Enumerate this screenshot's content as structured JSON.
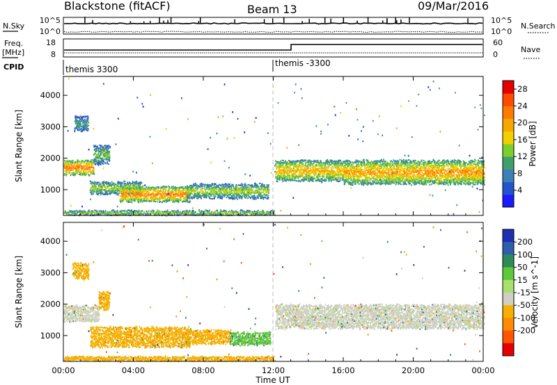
{
  "header": {
    "station": "Blackstone (fitACF)",
    "beam": "Beam 13",
    "date": "09/Mar/2016"
  },
  "noise_panel": {
    "left_label": "N.Sky",
    "right_label": "N.Search",
    "left_ticks": [
      "10^5",
      "10^0"
    ],
    "right_ticks": [
      "10^5",
      "10^0"
    ]
  },
  "freq_panel": {
    "left_label_top": "Freq.",
    "left_label_bottom": "[MHz]",
    "right_label": "Nave",
    "left_ticks": [
      "18",
      "8"
    ],
    "right_ticks": [
      "60",
      "0"
    ]
  },
  "cpid": {
    "label": "CPID",
    "segments": [
      "themis 3300",
      "themis -3300"
    ],
    "segment_start_hours": [
      0,
      12
    ]
  },
  "colors": {
    "power": [
      "#1a1aff",
      "#2255cc",
      "#3e7fb8",
      "#3f9f6a",
      "#7ccf2f",
      "#f2d000",
      "#f7a800",
      "#ff7a00",
      "#ff4a00",
      "#e60000"
    ],
    "velocity": [
      "#1e2fb0",
      "#2f5fa8",
      "#2e8b57",
      "#5cc83a",
      "#a8e070",
      "#cfcfc4",
      "#f5b000",
      "#ff8c00",
      "#ff5500",
      "#e60000"
    ],
    "gray_scatter": "#c8c8c0"
  },
  "chart_data": [
    {
      "type": "heatmap",
      "title": "Power",
      "xlabel": "",
      "ylabel": "Slant Range [km]",
      "x_ticks": [
        "00:00",
        "04:00",
        "08:00",
        "12:00",
        "16:00",
        "20:00",
        "00:00"
      ],
      "xlim_hours": [
        0,
        24
      ],
      "y_ticks": [
        1000,
        2000,
        3000,
        4000
      ],
      "ylim": [
        180,
        4600
      ],
      "colorbar_label": "Power [dB]",
      "colorbar_ticks": [
        4,
        8,
        12,
        16,
        20,
        24,
        28
      ],
      "colorbar_range": [
        0,
        30
      ],
      "dashed_line_hour": 12,
      "scatter_bands": [
        {
          "t_start": 0.0,
          "t_end": 1.7,
          "range_center": 1700,
          "range_half_width": 230,
          "value": 22
        },
        {
          "t_start": 1.7,
          "t_end": 2.6,
          "range_center": 2100,
          "range_half_width": 300,
          "value": 12
        },
        {
          "t_start": 0.6,
          "t_end": 1.4,
          "range_center": 3100,
          "range_half_width": 250,
          "value": 10
        },
        {
          "t_start": 1.5,
          "t_end": 4.5,
          "range_center": 1050,
          "range_half_width": 200,
          "value": 14
        },
        {
          "t_start": 3.2,
          "t_end": 7.2,
          "range_center": 850,
          "range_half_width": 240,
          "value": 21
        },
        {
          "t_start": 7.0,
          "t_end": 11.7,
          "range_center": 950,
          "range_half_width": 230,
          "value": 14
        },
        {
          "t_start": 0.0,
          "t_end": 12.0,
          "range_center": 260,
          "range_half_width": 70,
          "value": 14
        },
        {
          "t_start": 12.1,
          "t_end": 16.0,
          "range_center": 1600,
          "range_half_width": 330,
          "value": 18
        },
        {
          "t_start": 16.0,
          "t_end": 20.0,
          "range_center": 1550,
          "range_half_width": 380,
          "value": 19
        },
        {
          "t_start": 20.0,
          "t_end": 24.0,
          "range_center": 1550,
          "range_half_width": 380,
          "value": 20
        },
        {
          "t_start": 12.0,
          "t_end": 24.0,
          "range_center": 3400,
          "range_half_width": 900,
          "value": 10
        }
      ]
    },
    {
      "type": "heatmap",
      "title": "Velocity",
      "xlabel": "Time UT",
      "ylabel": "Slant Range [km]",
      "x_ticks": [
        "00:00",
        "04:00",
        "08:00",
        "12:00",
        "16:00",
        "20:00",
        "00:00"
      ],
      "xlim_hours": [
        0,
        24
      ],
      "y_ticks": [
        1000,
        2000,
        3000,
        4000
      ],
      "ylim": [
        180,
        4600
      ],
      "colorbar_label": "Velocity [m s^-1]",
      "colorbar_ticks": [
        "200",
        "100",
        "50",
        "15",
        "-15",
        "-50",
        "-100",
        "-200"
      ],
      "dashed_line_hour": 12,
      "scatter_bands": [
        {
          "t_start": 0.0,
          "t_end": 2.0,
          "range_center": 1700,
          "range_half_width": 250,
          "value": 0
        },
        {
          "t_start": 2.0,
          "t_end": 2.6,
          "range_center": 2100,
          "range_half_width": 300,
          "value": -30
        },
        {
          "t_start": 0.5,
          "t_end": 1.4,
          "range_center": 3050,
          "range_half_width": 250,
          "value": -30
        },
        {
          "t_start": 1.5,
          "t_end": 7.2,
          "range_center": 950,
          "range_half_width": 320,
          "value": -40
        },
        {
          "t_start": 7.0,
          "t_end": 9.5,
          "range_center": 950,
          "range_half_width": 220,
          "value": -40
        },
        {
          "t_start": 9.5,
          "t_end": 11.8,
          "range_center": 900,
          "range_half_width": 200,
          "value": 25
        },
        {
          "t_start": 0.0,
          "t_end": 12.0,
          "range_center": 260,
          "range_half_width": 70,
          "value": -40
        },
        {
          "t_start": 12.1,
          "t_end": 24.0,
          "range_center": 1600,
          "range_half_width": 380,
          "value": 0
        }
      ]
    }
  ]
}
